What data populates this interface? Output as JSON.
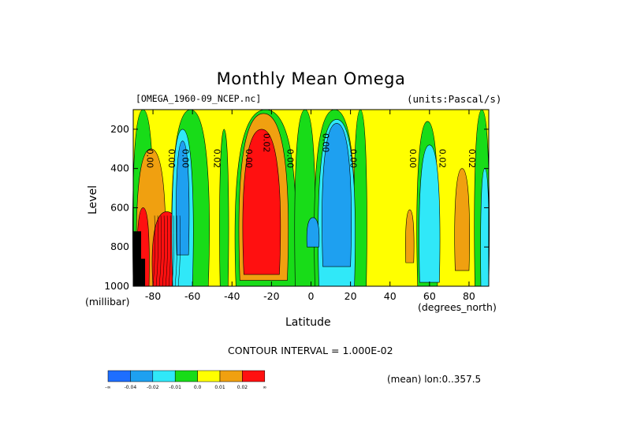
{
  "chart_data": {
    "type": "heatmap",
    "title": "Monthly Mean Omega",
    "dataset_label": "[OMEGA_1960-09_NCEP.nc]",
    "units_label": "(units:Pascal/s)",
    "xlabel": "Latitude",
    "x_units": "(degrees_north)",
    "ylabel": "Level",
    "y_units": "(millibar)",
    "xlim": [
      -90,
      90
    ],
    "ylim": [
      1000,
      100
    ],
    "x_ticks": [
      "-80",
      "-60",
      "-40",
      "-20",
      "0",
      "20",
      "40",
      "60",
      "80"
    ],
    "y_ticks": [
      "200",
      "400",
      "600",
      "800",
      "1000"
    ],
    "contour_interval": "CONTOUR INTERVAL = 1.000E-02",
    "footer_note": "(mean) lon:0..357.5",
    "contour_labels": [
      "0.00",
      "0.00",
      "0.00",
      "0.02",
      "0.00",
      "0.02",
      "0.00",
      "0.00",
      "0.00",
      "0.00",
      "0.02",
      "0.02"
    ],
    "colorbar": {
      "colors": [
        "#1e6eff",
        "#1ea0f0",
        "#30e8f8",
        "#18dc18",
        "#ffff00",
        "#f0a010",
        "#ff1010"
      ],
      "labels": [
        "-∞",
        "-0.04",
        "-0.02",
        "-0.01",
        "0.0",
        "0.01",
        "0.02",
        "∞"
      ]
    },
    "bands": [
      {
        "lat": [
          -90,
          -84
        ],
        "value": "yellow"
      },
      {
        "lat": [
          -76,
          -72
        ],
        "value": "orange"
      },
      {
        "lat": [
          -68,
          -62
        ],
        "value": "blue"
      },
      {
        "lat": [
          -60,
          -54
        ],
        "value": "green"
      },
      {
        "lat": [
          -34,
          -14
        ],
        "value": "red"
      },
      {
        "lat": [
          -6,
          0
        ],
        "value": "green"
      },
      {
        "lat": [
          6,
          18
        ],
        "value": "blue"
      },
      {
        "lat": [
          22,
          26
        ],
        "value": "green"
      },
      {
        "lat": [
          48,
          52
        ],
        "value": "orange"
      },
      {
        "lat": [
          56,
          64
        ],
        "value": "cyan"
      },
      {
        "lat": [
          74,
          80
        ],
        "value": "orange"
      },
      {
        "lat": [
          84,
          90
        ],
        "value": "cyan"
      }
    ]
  }
}
